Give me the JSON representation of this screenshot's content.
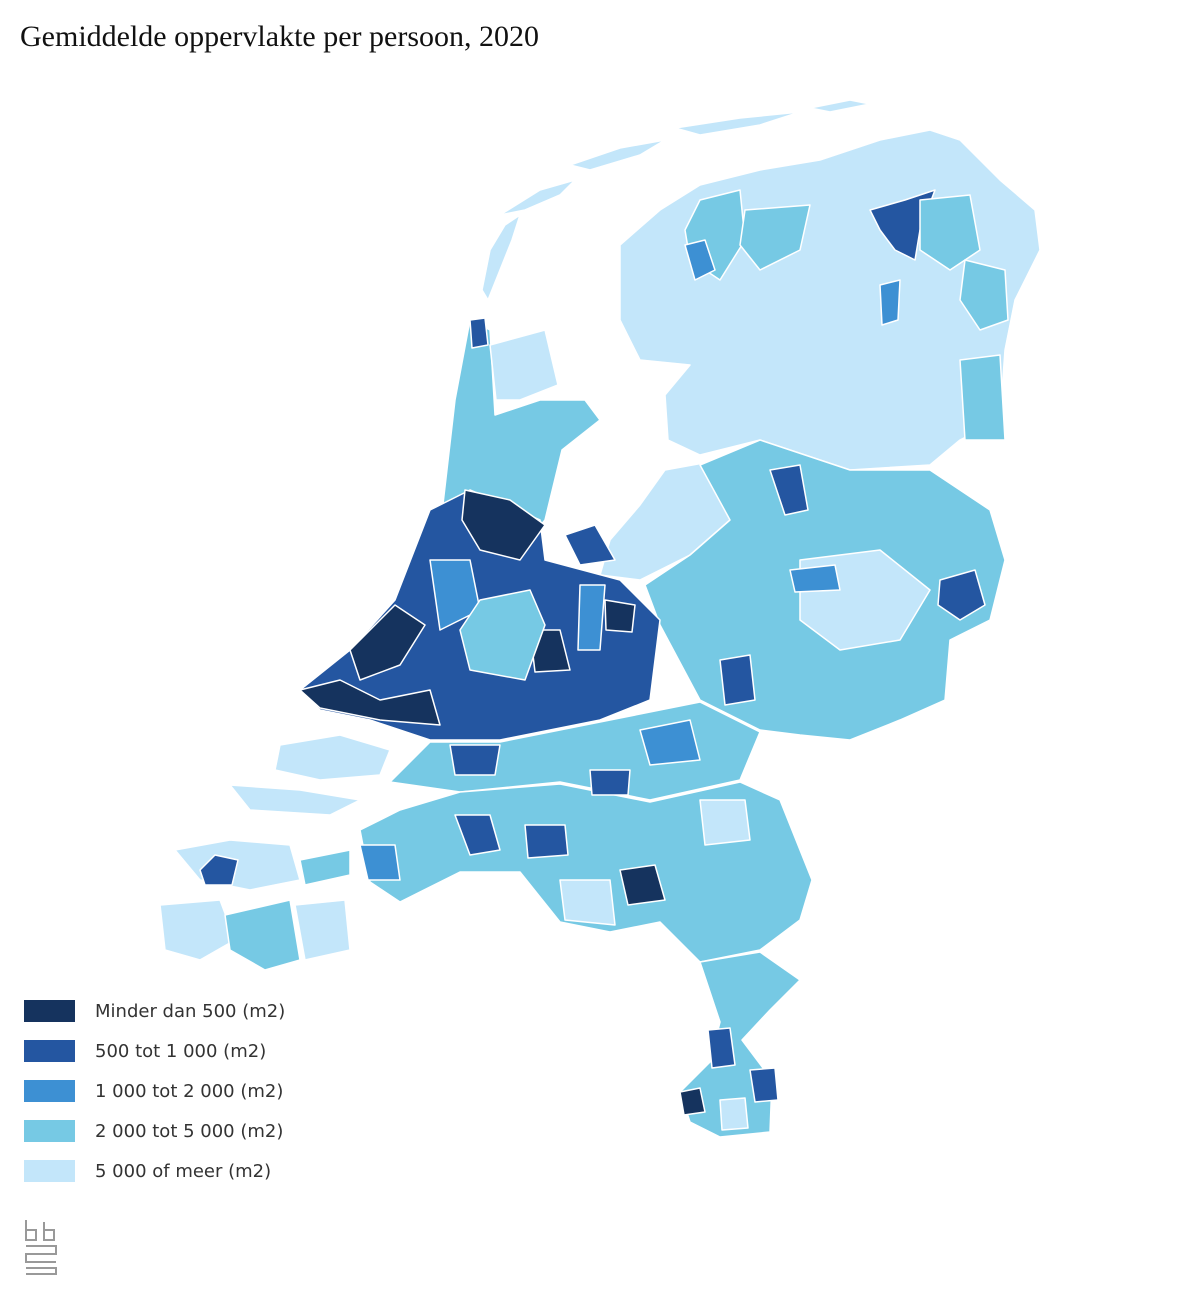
{
  "title": "Gemiddelde oppervlakte per persoon, 2020",
  "legend": {
    "items": [
      {
        "label": "Minder dan 500 (m2)",
        "color": "#15335e"
      },
      {
        "label": "500 tot 1 000 (m2)",
        "color": "#2456a1"
      },
      {
        "label": "1 000 tot 2 000 (m2)",
        "color": "#3d90d3"
      },
      {
        "label": "2 000 tot 5 000 (m2)",
        "color": "#76c9e4"
      },
      {
        "label": "5 000 of meer (m2)",
        "color": "#c3e6fa"
      }
    ]
  }
}
